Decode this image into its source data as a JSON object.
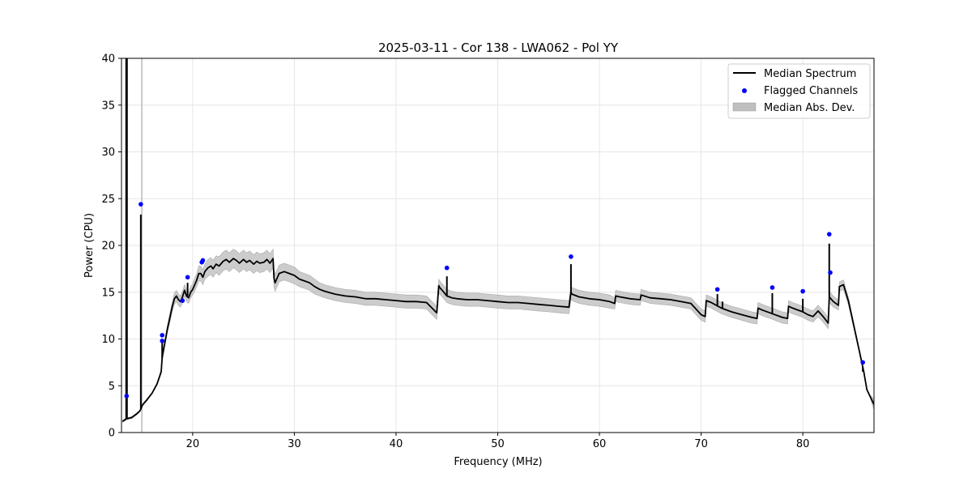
{
  "chart_data": {
    "type": "line",
    "title": "2025-03-11 - Cor 138 - LWA062 - Pol YY",
    "xlabel": "Frequency (MHz)",
    "ylabel": "Power (CPU)",
    "xlim": [
      13,
      87
    ],
    "ylim": [
      0,
      40
    ],
    "xticks": [
      20,
      30,
      40,
      50,
      60,
      70,
      80
    ],
    "yticks": [
      0,
      5,
      10,
      15,
      20,
      25,
      30,
      35,
      40
    ],
    "xtick_labels": [
      "20",
      "30",
      "40",
      "50",
      "60",
      "70",
      "80"
    ],
    "ytick_labels": [
      "0",
      "5",
      "10",
      "15",
      "20",
      "25",
      "30",
      "35",
      "40"
    ],
    "grid": true,
    "legend_position": "top-right",
    "legend": [
      {
        "key": "median",
        "label": "Median Spectrum",
        "style": "line",
        "color": "#000000"
      },
      {
        "key": "flagged",
        "label": "Flagged Channels",
        "style": "dot",
        "color": "#0000ff"
      },
      {
        "key": "mad",
        "label": "Median Abs. Dev.",
        "style": "band",
        "color": "#bfbfbf"
      }
    ],
    "median_spectrum": {
      "x": [
        13.1,
        13.4,
        13.5,
        13.6,
        14.0,
        14.5,
        14.8,
        14.9,
        15.0,
        15.1,
        15.5,
        16.0,
        16.5,
        16.9,
        17.0,
        17.2,
        17.5,
        17.8,
        18.0,
        18.2,
        18.4,
        18.6,
        18.8,
        19.0,
        19.2,
        19.4,
        19.6,
        19.8,
        20.0,
        20.2,
        20.4,
        20.6,
        20.8,
        21.0,
        21.2,
        21.5,
        21.8,
        22.0,
        22.3,
        22.6,
        23.0,
        23.3,
        23.6,
        24.0,
        24.3,
        24.6,
        25.0,
        25.3,
        25.6,
        26.0,
        26.3,
        26.6,
        27.0,
        27.3,
        27.6,
        27.9,
        28.0,
        28.1,
        28.5,
        29.0,
        29.5,
        30.0,
        30.5,
        31.0,
        31.5,
        32.0,
        32.5,
        33.0,
        34.0,
        35.0,
        36.0,
        37.0,
        38.0,
        39.0,
        40.0,
        41.0,
        42.0,
        43.0,
        44.0,
        44.2,
        44.3,
        44.7,
        45.0,
        45.5,
        46.0,
        47.0,
        48.0,
        49.0,
        50.0,
        51.0,
        52.0,
        53.0,
        54.0,
        55.0,
        56.0,
        57.0,
        57.2,
        57.3,
        58.0,
        59.0,
        60.0,
        61.0,
        61.5,
        61.6,
        62.0,
        63.0,
        64.0,
        64.1,
        65.0,
        66.0,
        67.0,
        68.0,
        69.0,
        70.0,
        70.4,
        70.5,
        71.0,
        71.5,
        72.0,
        73.0,
        74.0,
        75.0,
        75.5,
        75.6,
        76.0,
        77.0,
        78.0,
        78.5,
        78.6,
        79.0,
        80.0,
        80.5,
        81.0,
        81.5,
        82.0,
        82.5,
        82.6,
        83.0,
        83.5,
        83.6,
        84.0,
        84.5,
        85.0,
        85.5,
        86.0,
        86.3,
        86.6,
        87.0
      ],
      "y": [
        1.2,
        1.4,
        1.5,
        1.5,
        1.6,
        2.0,
        2.3,
        2.5,
        2.8,
        3.0,
        3.5,
        4.2,
        5.2,
        6.5,
        8.0,
        9.2,
        11.0,
        12.5,
        13.5,
        14.3,
        14.6,
        14.2,
        14.0,
        14.5,
        15.2,
        14.6,
        14.4,
        15.0,
        15.3,
        15.8,
        16.3,
        17.0,
        17.0,
        16.6,
        17.2,
        17.6,
        17.8,
        17.5,
        18.0,
        17.8,
        18.3,
        18.5,
        18.2,
        18.6,
        18.4,
        18.1,
        18.5,
        18.2,
        18.4,
        18.0,
        18.3,
        18.1,
        18.2,
        18.5,
        18.1,
        18.6,
        16.5,
        16.0,
        17.0,
        17.2,
        17.0,
        16.8,
        16.4,
        16.2,
        16.0,
        15.6,
        15.3,
        15.1,
        14.8,
        14.6,
        14.5,
        14.3,
        14.3,
        14.2,
        14.1,
        14.0,
        14.0,
        13.9,
        12.8,
        15.7,
        15.5,
        15.0,
        14.6,
        14.4,
        14.3,
        14.2,
        14.2,
        14.1,
        14.0,
        13.9,
        13.9,
        13.8,
        13.7,
        13.6,
        13.5,
        13.4,
        15.0,
        14.8,
        14.5,
        14.3,
        14.2,
        14.0,
        13.8,
        14.6,
        14.5,
        14.3,
        14.2,
        14.7,
        14.4,
        14.3,
        14.2,
        14.0,
        13.8,
        12.6,
        12.4,
        14.1,
        13.9,
        13.6,
        13.3,
        12.9,
        12.6,
        12.3,
        12.2,
        13.3,
        13.1,
        12.7,
        12.3,
        12.2,
        13.5,
        13.3,
        12.9,
        12.6,
        12.4,
        13.0,
        12.4,
        11.7,
        14.5,
        14.0,
        13.6,
        15.6,
        15.8,
        14.0,
        11.5,
        9.0,
        6.5,
        4.6,
        3.9,
        3.0
      ],
      "spikes": [
        {
          "x": 13.5,
          "y": 40
        },
        {
          "x": 14.9,
          "y": 23.3
        },
        {
          "x": 17.0,
          "y": 9.8
        },
        {
          "x": 19.5,
          "y": 16.0
        },
        {
          "x": 45.0,
          "y": 16.7
        },
        {
          "x": 57.2,
          "y": 18.0
        },
        {
          "x": 71.6,
          "y": 14.8
        },
        {
          "x": 72.1,
          "y": 14.0
        },
        {
          "x": 77.0,
          "y": 14.9
        },
        {
          "x": 80.0,
          "y": 14.3
        },
        {
          "x": 82.6,
          "y": 20.2
        },
        {
          "x": 83.9,
          "y": 15.7
        },
        {
          "x": 85.9,
          "y": 7.0
        }
      ]
    },
    "median_abs_dev": {
      "half_width": [
        0.1,
        0.1,
        0.1,
        0.1,
        0.1,
        0.1,
        0.1,
        0.1,
        0.1,
        0.1,
        0.1,
        0.1,
        0.1,
        0.2,
        0.3,
        0.3,
        0.4,
        0.5,
        0.5,
        0.6,
        0.6,
        0.6,
        0.6,
        0.6,
        0.6,
        0.6,
        0.6,
        0.6,
        0.6,
        0.7,
        0.7,
        0.8,
        0.8,
        0.8,
        0.8,
        0.9,
        0.9,
        0.9,
        0.9,
        1.0,
        1.0,
        1.0,
        1.0,
        1.0,
        1.0,
        1.0,
        1.0,
        1.0,
        1.0,
        1.0,
        1.0,
        1.0,
        1.0,
        1.0,
        1.0,
        1.0,
        0.9,
        0.9,
        0.9,
        0.9,
        0.9,
        0.9,
        0.8,
        0.8,
        0.8,
        0.8,
        0.7,
        0.7,
        0.7,
        0.7,
        0.7,
        0.7,
        0.7,
        0.7,
        0.7,
        0.7,
        0.7,
        0.7,
        0.7,
        0.7,
        0.7,
        0.7,
        0.7,
        0.7,
        0.7,
        0.7,
        0.7,
        0.7,
        0.7,
        0.7,
        0.7,
        0.7,
        0.7,
        0.7,
        0.7,
        0.7,
        0.7,
        0.7,
        0.7,
        0.7,
        0.7,
        0.7,
        0.6,
        0.6,
        0.6,
        0.6,
        0.6,
        0.6,
        0.6,
        0.6,
        0.6,
        0.6,
        0.6,
        0.6,
        0.6,
        0.6,
        0.6,
        0.6,
        0.6,
        0.6,
        0.6,
        0.6,
        0.6,
        0.6,
        0.6,
        0.6,
        0.6,
        0.6,
        0.6,
        0.6,
        0.6,
        0.6,
        0.6,
        0.6,
        0.6,
        0.6,
        0.6,
        0.6,
        0.5,
        0.5,
        0.5,
        0.4,
        0.3,
        0.2,
        0.2,
        0.1,
        0.1
      ],
      "spikes": [
        {
          "x": 15.0,
          "y": 40
        }
      ]
    },
    "flagged_channels": [
      {
        "x": 13.5,
        "y": 3.9
      },
      {
        "x": 14.9,
        "y": 24.4
      },
      {
        "x": 17.0,
        "y": 10.4
      },
      {
        "x": 17.0,
        "y": 9.8
      },
      {
        "x": 19.0,
        "y": 14.1
      },
      {
        "x": 19.5,
        "y": 16.6
      },
      {
        "x": 20.9,
        "y": 18.2
      },
      {
        "x": 21.0,
        "y": 18.4
      },
      {
        "x": 45.0,
        "y": 17.6
      },
      {
        "x": 57.2,
        "y": 18.8
      },
      {
        "x": 71.6,
        "y": 15.3
      },
      {
        "x": 77.0,
        "y": 15.5
      },
      {
        "x": 80.0,
        "y": 15.1
      },
      {
        "x": 82.6,
        "y": 21.2
      },
      {
        "x": 82.7,
        "y": 17.1
      },
      {
        "x": 85.9,
        "y": 7.5
      }
    ]
  }
}
